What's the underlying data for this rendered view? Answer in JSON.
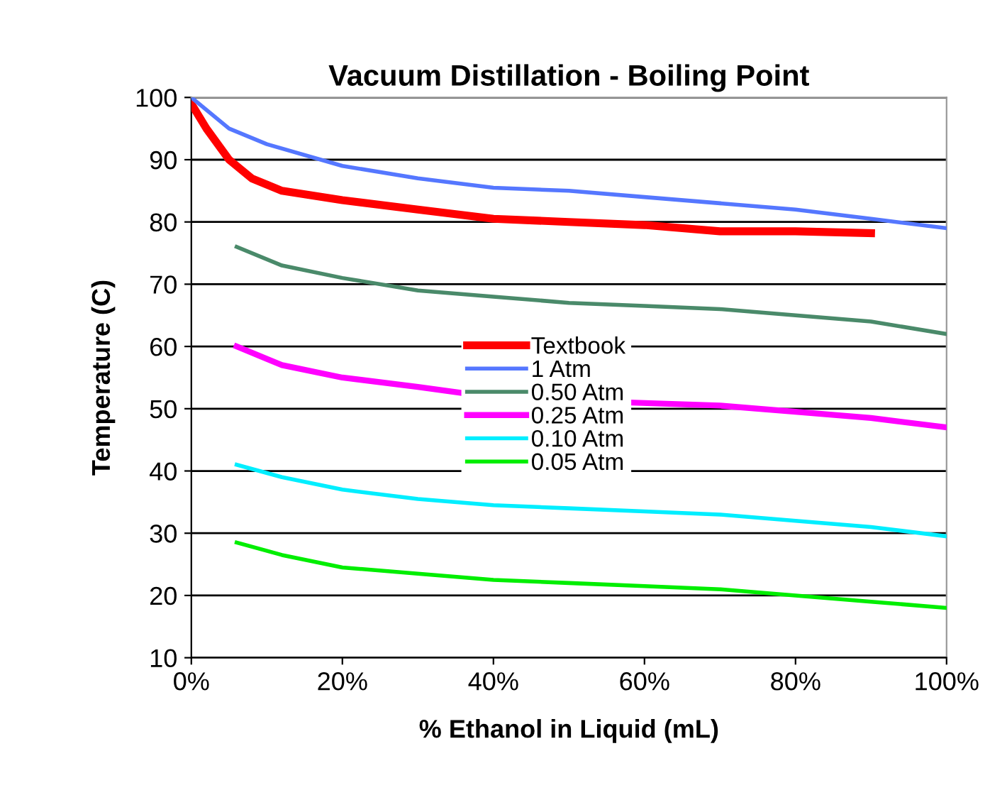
{
  "chart_data": {
    "type": "line",
    "title": "Vacuum Distillation - Boiling Point",
    "xlabel": "% Ethanol in Liquid (mL)",
    "ylabel": "Temperature (C)",
    "xlim": [
      0,
      100
    ],
    "xticks": [
      {
        "value": 0,
        "label": "0%"
      },
      {
        "value": 20,
        "label": "20%"
      },
      {
        "value": 40,
        "label": "40%"
      },
      {
        "value": 60,
        "label": "60%"
      },
      {
        "value": 80,
        "label": "80%"
      },
      {
        "value": 100,
        "label": "100%"
      }
    ],
    "ylim": [
      10,
      100
    ],
    "yticks": [
      10,
      20,
      30,
      40,
      50,
      60,
      70,
      80,
      90,
      100
    ],
    "grid": "y",
    "legend": "center",
    "marker": "none",
    "line_style": "solid",
    "series": [
      {
        "name": "Textbook",
        "color": "#ff0000",
        "x": [
          0,
          2,
          5,
          8,
          12,
          20,
          30,
          40,
          50,
          60,
          70,
          80,
          90
        ],
        "values": [
          99,
          95,
          90,
          87,
          85,
          83.5,
          82,
          80.5,
          80,
          79.5,
          78.5,
          78.5,
          78.2
        ]
      },
      {
        "name": "1 Atm",
        "color": "#5577ff",
        "x": [
          0,
          5,
          10,
          20,
          30,
          40,
          50,
          60,
          70,
          80,
          90,
          100
        ],
        "values": [
          100,
          95,
          92.5,
          89,
          87,
          85.5,
          85,
          84,
          83,
          82,
          80.5,
          79
        ]
      },
      {
        "name": "0.50 Atm",
        "color": "#4a8a6a",
        "x": [
          6,
          12,
          20,
          30,
          40,
          50,
          60,
          70,
          80,
          90,
          100
        ],
        "values": [
          76,
          73,
          71,
          69,
          68,
          67,
          66.5,
          66,
          65,
          64,
          62
        ]
      },
      {
        "name": "0.25 Atm",
        "color": "#ff00ff",
        "x": [
          6,
          12,
          20,
          30,
          36,
          47,
          58,
          70,
          80,
          90,
          100
        ],
        "values": [
          60,
          57,
          55,
          53.5,
          52.5,
          null,
          51,
          50.5,
          49.5,
          48.5,
          47
        ]
      },
      {
        "name": "0.10 Atm",
        "color": "#00eeff",
        "x": [
          6,
          12,
          20,
          30,
          40,
          50,
          60,
          70,
          80,
          90,
          100
        ],
        "values": [
          41,
          39,
          37,
          35.5,
          34.5,
          34,
          33.5,
          33,
          32,
          31,
          29.5
        ]
      },
      {
        "name": "0.05 Atm",
        "color": "#00ee00",
        "x": [
          6,
          12,
          20,
          30,
          40,
          50,
          60,
          70,
          80,
          90,
          100
        ],
        "values": [
          28.5,
          26.5,
          24.5,
          23.5,
          22.5,
          22,
          21.5,
          21,
          20,
          19,
          18
        ]
      }
    ]
  }
}
